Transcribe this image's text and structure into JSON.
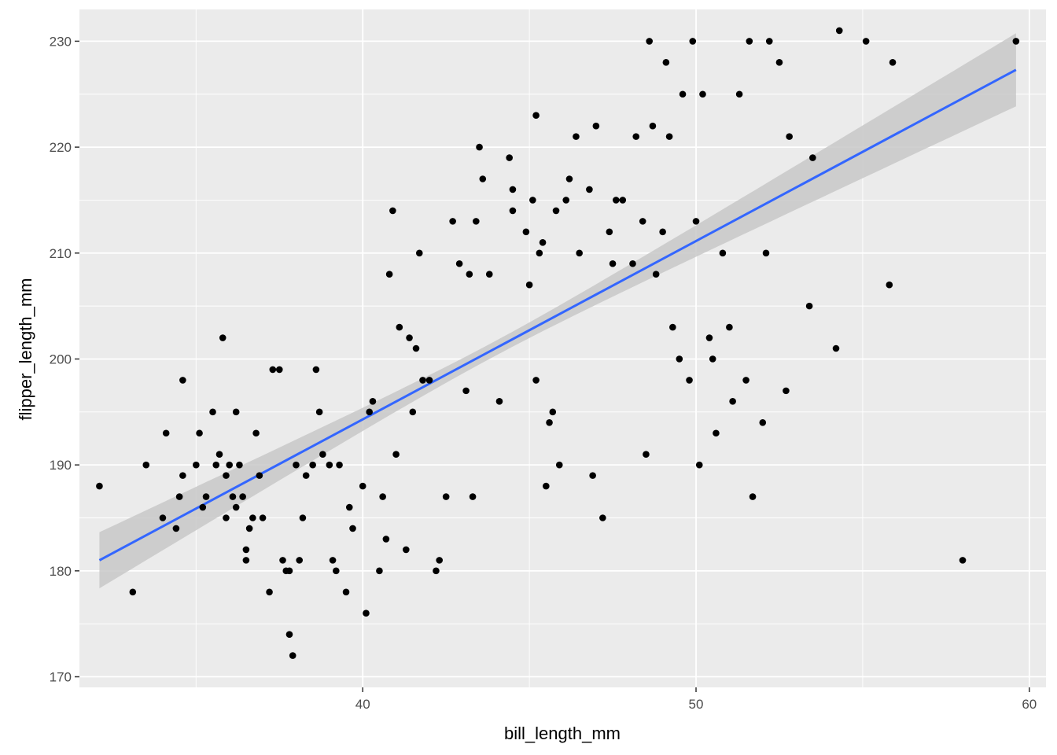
{
  "chart_data": {
    "type": "scatter",
    "xlabel": "bill_length_mm",
    "ylabel": "flipper_length_mm",
    "xlim": [
      31.5,
      60.5
    ],
    "ylim": [
      169,
      233
    ],
    "x_ticks": [
      40,
      50,
      60
    ],
    "x_tick_labels": [
      "40",
      "50",
      "60"
    ],
    "y_ticks": [
      170,
      180,
      190,
      200,
      210,
      220,
      230
    ],
    "y_tick_labels": [
      "170",
      "180",
      "190",
      "200",
      "210",
      "220",
      "230"
    ],
    "grid": true,
    "legend": "none",
    "colors": {
      "panel": "#ebebeb",
      "grid_major": "#ffffff",
      "points": "#000000",
      "fit_line": "#3366ff",
      "ribbon": "#c8c8c8"
    },
    "fit": {
      "method": "lm",
      "x_range": [
        32.1,
        59.6
      ],
      "y_range": [
        181.0,
        227.3
      ],
      "confidence_band_at_x_min": [
        178.3,
        183.6
      ],
      "confidence_band_at_x_max": [
        223.9,
        230.8
      ]
    },
    "points": [
      [
        32.1,
        188
      ],
      [
        33.1,
        178
      ],
      [
        33.5,
        190
      ],
      [
        34.0,
        185
      ],
      [
        34.1,
        193
      ],
      [
        34.4,
        184
      ],
      [
        34.5,
        187
      ],
      [
        34.6,
        198
      ],
      [
        34.6,
        189
      ],
      [
        35.0,
        190
      ],
      [
        35.1,
        193
      ],
      [
        35.2,
        186
      ],
      [
        35.3,
        187
      ],
      [
        35.5,
        195
      ],
      [
        35.6,
        190
      ],
      [
        35.7,
        191
      ],
      [
        35.8,
        202
      ],
      [
        35.9,
        185
      ],
      [
        35.9,
        189
      ],
      [
        36.0,
        190
      ],
      [
        36.1,
        187
      ],
      [
        36.2,
        186
      ],
      [
        36.2,
        195
      ],
      [
        36.3,
        190
      ],
      [
        36.4,
        187
      ],
      [
        36.5,
        181
      ],
      [
        36.5,
        182
      ],
      [
        36.6,
        184
      ],
      [
        36.7,
        185
      ],
      [
        36.8,
        193
      ],
      [
        36.9,
        189
      ],
      [
        37.0,
        185
      ],
      [
        37.2,
        178
      ],
      [
        37.3,
        199
      ],
      [
        37.5,
        199
      ],
      [
        37.6,
        181
      ],
      [
        37.7,
        180
      ],
      [
        37.8,
        174
      ],
      [
        37.8,
        180
      ],
      [
        37.9,
        172
      ],
      [
        38.0,
        190
      ],
      [
        38.1,
        181
      ],
      [
        38.2,
        185
      ],
      [
        38.3,
        189
      ],
      [
        38.5,
        190
      ],
      [
        38.6,
        199
      ],
      [
        38.7,
        195
      ],
      [
        38.8,
        191
      ],
      [
        39.0,
        190
      ],
      [
        39.1,
        181
      ],
      [
        39.2,
        180
      ],
      [
        39.3,
        190
      ],
      [
        39.5,
        178
      ],
      [
        39.6,
        186
      ],
      [
        39.7,
        184
      ],
      [
        40.0,
        188
      ],
      [
        40.1,
        176
      ],
      [
        40.2,
        195
      ],
      [
        40.3,
        196
      ],
      [
        40.5,
        180
      ],
      [
        40.6,
        187
      ],
      [
        40.7,
        183
      ],
      [
        40.8,
        208
      ],
      [
        40.9,
        214
      ],
      [
        41.0,
        191
      ],
      [
        41.1,
        203
      ],
      [
        41.3,
        182
      ],
      [
        41.4,
        202
      ],
      [
        41.5,
        195
      ],
      [
        41.6,
        201
      ],
      [
        41.7,
        210
      ],
      [
        41.8,
        198
      ],
      [
        42.0,
        198
      ],
      [
        42.2,
        180
      ],
      [
        42.3,
        181
      ],
      [
        42.5,
        187
      ],
      [
        42.7,
        213
      ],
      [
        42.9,
        209
      ],
      [
        43.1,
        197
      ],
      [
        43.2,
        208
      ],
      [
        43.3,
        187
      ],
      [
        43.4,
        213
      ],
      [
        43.5,
        220
      ],
      [
        43.6,
        217
      ],
      [
        43.8,
        208
      ],
      [
        44.1,
        196
      ],
      [
        44.4,
        219
      ],
      [
        44.5,
        214
      ],
      [
        44.5,
        216
      ],
      [
        44.9,
        212
      ],
      [
        45.0,
        207
      ],
      [
        45.1,
        215
      ],
      [
        45.2,
        223
      ],
      [
        45.2,
        198
      ],
      [
        45.3,
        210
      ],
      [
        45.4,
        211
      ],
      [
        45.5,
        188
      ],
      [
        45.6,
        194
      ],
      [
        45.7,
        195
      ],
      [
        45.8,
        214
      ],
      [
        45.9,
        190
      ],
      [
        46.1,
        215
      ],
      [
        46.2,
        217
      ],
      [
        46.4,
        221
      ],
      [
        46.5,
        210
      ],
      [
        46.8,
        216
      ],
      [
        46.9,
        189
      ],
      [
        47.0,
        222
      ],
      [
        47.2,
        185
      ],
      [
        47.4,
        212
      ],
      [
        47.5,
        209
      ],
      [
        47.6,
        215
      ],
      [
        47.8,
        215
      ],
      [
        48.1,
        209
      ],
      [
        48.2,
        221
      ],
      [
        48.4,
        213
      ],
      [
        48.5,
        191
      ],
      [
        48.6,
        230
      ],
      [
        48.7,
        222
      ],
      [
        48.8,
        208
      ],
      [
        49.0,
        212
      ],
      [
        49.1,
        228
      ],
      [
        49.2,
        221
      ],
      [
        49.3,
        203
      ],
      [
        49.5,
        200
      ],
      [
        49.6,
        225
      ],
      [
        49.8,
        198
      ],
      [
        49.9,
        230
      ],
      [
        50.0,
        213
      ],
      [
        50.1,
        190
      ],
      [
        50.2,
        225
      ],
      [
        50.4,
        202
      ],
      [
        50.5,
        200
      ],
      [
        50.6,
        193
      ],
      [
        50.8,
        210
      ],
      [
        51.0,
        203
      ],
      [
        51.1,
        196
      ],
      [
        51.3,
        225
      ],
      [
        51.5,
        198
      ],
      [
        51.6,
        230
      ],
      [
        51.7,
        187
      ],
      [
        52.0,
        194
      ],
      [
        52.1,
        210
      ],
      [
        52.2,
        230
      ],
      [
        52.5,
        228
      ],
      [
        52.7,
        197
      ],
      [
        52.8,
        221
      ],
      [
        53.4,
        205
      ],
      [
        53.5,
        219
      ],
      [
        54.2,
        201
      ],
      [
        54.3,
        231
      ],
      [
        55.1,
        230
      ],
      [
        55.8,
        207
      ],
      [
        55.9,
        228
      ],
      [
        58.0,
        181
      ],
      [
        59.6,
        230
      ]
    ]
  }
}
